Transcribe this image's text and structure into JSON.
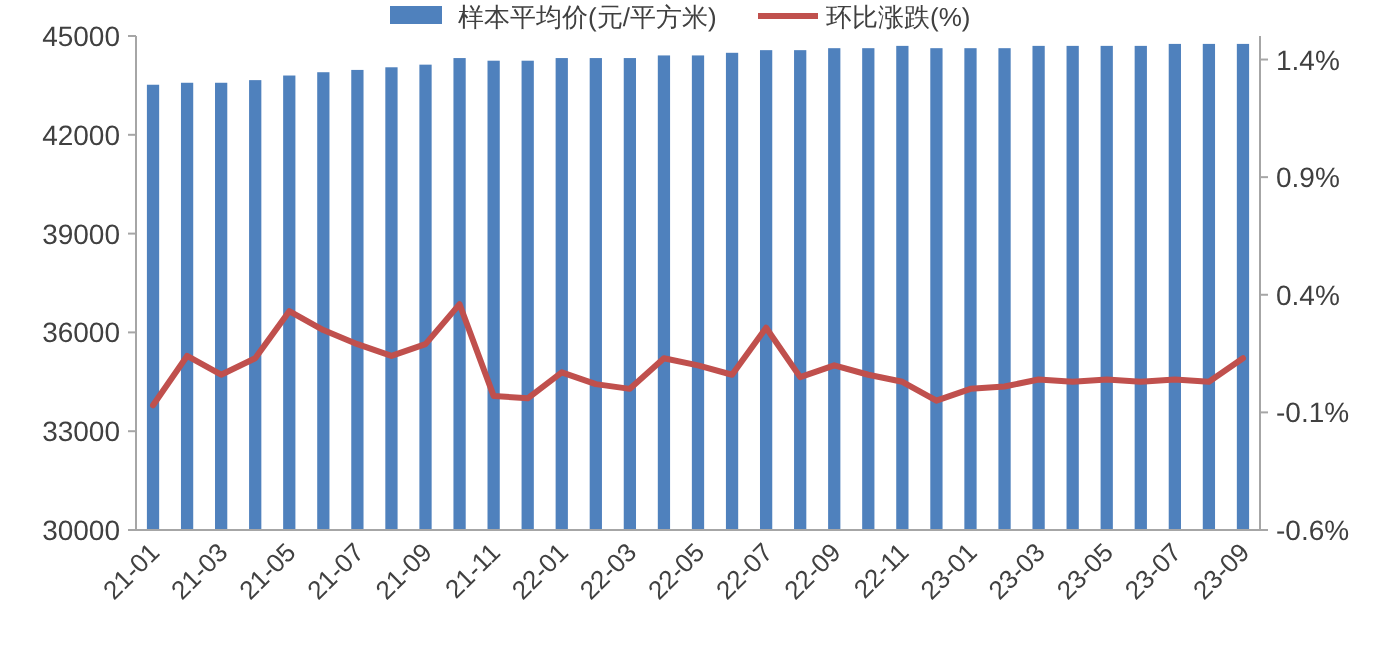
{
  "chart_data": {
    "type": "bar",
    "categories": [
      "21-01",
      null,
      "21-03",
      null,
      "21-05",
      null,
      "21-07",
      null,
      "21-09",
      null,
      "21-11",
      null,
      "22-01",
      null,
      "22-03",
      null,
      "22-05",
      null,
      "22-07",
      null,
      "22-09",
      null,
      "22-11",
      null,
      "23-01",
      null,
      "23-03",
      null,
      "23-05",
      null,
      "23-07",
      null,
      "23-09"
    ],
    "series": [
      {
        "name": "样本平均价(元/平方米)",
        "color": "#4f81bd",
        "values": [
          43520,
          43580,
          43580,
          43660,
          43800,
          43900,
          43970,
          44050,
          44130,
          44330,
          44250,
          44250,
          44330,
          44330,
          44330,
          44410,
          44410,
          44490,
          44570,
          44570,
          44630,
          44630,
          44700,
          44630,
          44630,
          44630,
          44700,
          44700,
          44700,
          44700,
          44760,
          44760,
          44760
        ]
      },
      {
        "name": "环比涨跌(%)",
        "type": "line",
        "axis": "y2",
        "color": "#c0504d",
        "values": [
          -0.07,
          0.14,
          0.06,
          0.13,
          0.33,
          0.25,
          0.19,
          0.14,
          0.19,
          0.36,
          -0.03,
          -0.04,
          0.07,
          0.02,
          0.0,
          0.13,
          0.1,
          0.06,
          0.26,
          0.05,
          0.1,
          0.06,
          0.03,
          -0.05,
          0.0,
          0.01,
          0.04,
          0.03,
          0.04,
          0.03,
          0.04,
          0.03,
          0.13
        ]
      }
    ],
    "ylim": [
      30000,
      45000
    ],
    "yticks": [
      30000,
      33000,
      36000,
      39000,
      42000,
      45000
    ],
    "y2lim": [
      -0.6,
      1.5
    ],
    "y2ticks": [
      {
        "value": -0.6,
        "label": "-0.6%"
      },
      {
        "value": -0.1,
        "label": "-0.1%"
      },
      {
        "value": 0.4,
        "label": "0.4%"
      },
      {
        "value": 0.9,
        "label": "0.9%"
      },
      {
        "value": 1.4,
        "label": "1.4%"
      }
    ],
    "legend": "top",
    "grid": false
  }
}
